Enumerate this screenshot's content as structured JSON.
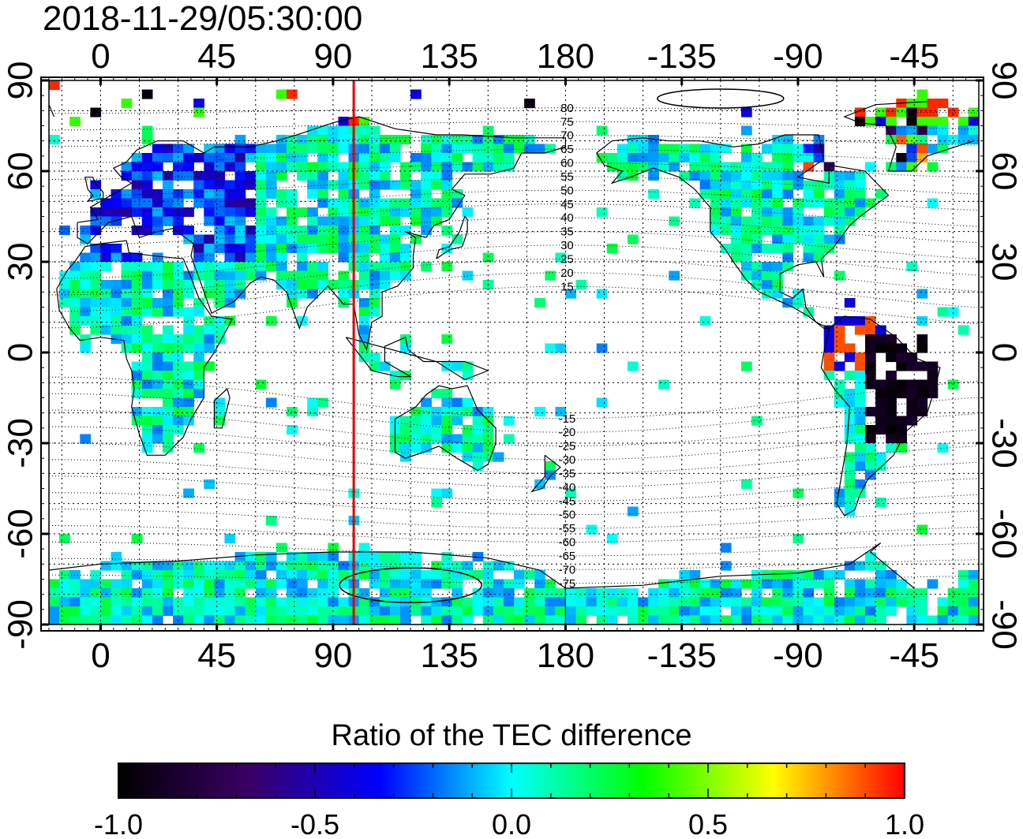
{
  "timestamp": "2018-11-29/05:30:00",
  "colorbar": {
    "title": "Ratio of the TEC difference",
    "range": [
      -1.0,
      1.0
    ],
    "tick_labels": [
      "-1.0",
      "-0.5",
      "0.0",
      "0.5",
      "1.0"
    ],
    "colors": [
      "#000000",
      "#3a0066",
      "#0000ff",
      "#00ffff",
      "#00ff00",
      "#ffff00",
      "#ff0000"
    ]
  },
  "map": {
    "lon_ticks": [
      0,
      45,
      90,
      135,
      180,
      -135,
      -90,
      -45
    ],
    "lon_tick_labels": [
      "0",
      "45",
      "90",
      "135",
      "180",
      "-135",
      "-90",
      "-45"
    ],
    "lat_ticks": [
      90,
      60,
      30,
      0,
      -30,
      -60,
      -90
    ],
    "lat_tick_labels": [
      "90",
      "60",
      "30",
      "0",
      "-30",
      "-60",
      "-90"
    ],
    "lon_range": [
      -20,
      340
    ],
    "lat_range": [
      -90,
      90
    ],
    "gridlines": true,
    "marker_line_lon": 98,
    "marker_line_color": "#e00000",
    "contour_labels_north": [
      "80",
      "75",
      "70",
      "65",
      "60",
      "55",
      "50",
      "45",
      "40",
      "35",
      "30",
      "25",
      "20",
      "15"
    ],
    "contour_labels_south": [
      "-15",
      "-20",
      "-25",
      "-30",
      "-35",
      "-40",
      "-45",
      "-50",
      "-55",
      "-60",
      "-65",
      "-70",
      "-75"
    ]
  }
}
